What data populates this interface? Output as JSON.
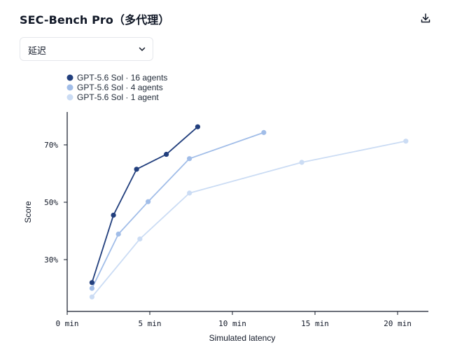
{
  "header": {
    "title": "SEC-Bench Pro（多代理）",
    "download_icon": "download-icon"
  },
  "metric_select": {
    "value": "延迟",
    "icon": "chevron-down-icon"
  },
  "colors": {
    "series_16": "#223f7d",
    "series_4": "#a1bde8",
    "series_1": "#cbdcf4",
    "axis": "#111827"
  },
  "chart_data": {
    "type": "line",
    "xlabel": "Simulated latency",
    "ylabel": "Score",
    "xlim": [
      0,
      22
    ],
    "ylim": [
      15,
      80
    ],
    "x_ticks": [
      0,
      5,
      10,
      15,
      20
    ],
    "x_tick_labels": [
      "0 min",
      "5 min",
      "10 min",
      "15 min",
      "20 min"
    ],
    "y_ticks": [
      30,
      50,
      70
    ],
    "y_tick_labels": [
      "30%",
      "50%",
      "70%"
    ],
    "grid": false,
    "legend_position": "top-left",
    "series": [
      {
        "name": "GPT‑5.6 Sol · 16 agents",
        "color": "#223f7d",
        "x": [
          1.5,
          2.8,
          4.2,
          6.0,
          7.9
        ],
        "y": [
          22.0,
          45.5,
          61.5,
          66.7,
          76.3
        ]
      },
      {
        "name": "GPT‑5.6 Sol · 4 agents",
        "color": "#a1bde8",
        "x": [
          1.5,
          3.1,
          4.9,
          7.4,
          11.9
        ],
        "y": [
          20.0,
          38.9,
          50.2,
          65.2,
          74.3
        ]
      },
      {
        "name": "GPT‑5.6 Sol · 1 agent",
        "color": "#cbdcf4",
        "x": [
          1.5,
          4.4,
          7.4,
          14.2,
          20.5
        ],
        "y": [
          17.0,
          37.2,
          53.2,
          63.9,
          71.3
        ]
      }
    ]
  }
}
